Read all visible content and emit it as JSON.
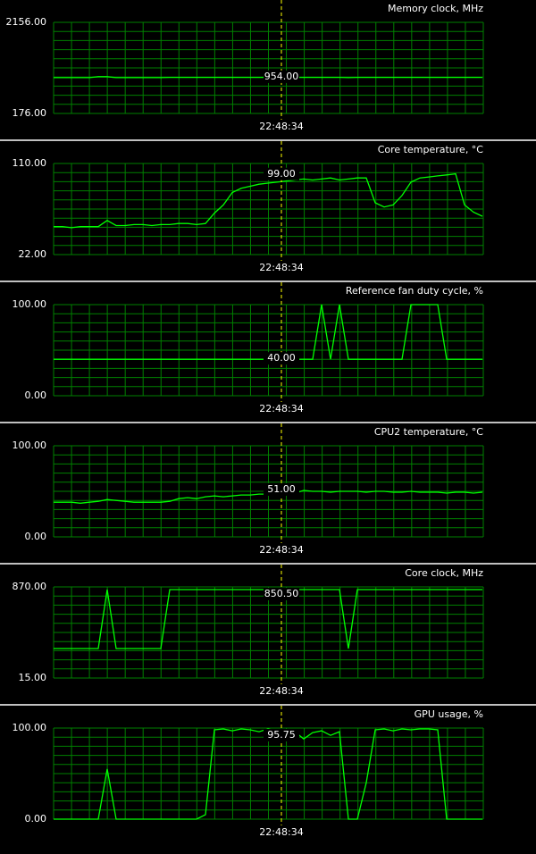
{
  "chart_data": [
    {
      "type": "line",
      "title": "Memory clock, MHz",
      "color": "#00ff00",
      "grid": true,
      "ylim": [
        176,
        2156
      ],
      "yticks": [
        {
          "value": 176,
          "label": "176.00"
        },
        {
          "value": 2156,
          "label": "2156.00"
        }
      ],
      "cursor": {
        "time": "22:48:34",
        "value": 954,
        "label": "954.00"
      },
      "values": [
        954,
        954,
        954,
        954,
        954,
        975,
        975,
        954,
        954,
        954,
        954,
        954,
        954,
        960,
        960,
        960,
        960,
        960,
        960,
        960,
        960,
        960,
        960,
        960,
        960,
        960,
        960,
        960,
        960,
        960,
        960,
        960,
        960,
        954,
        960,
        960,
        960,
        960,
        960,
        960,
        960,
        960,
        960,
        960,
        960,
        960,
        960,
        960,
        960
      ]
    },
    {
      "type": "line",
      "title": "Core temperature, °C",
      "color": "#00ff00",
      "grid": true,
      "ylim": [
        22,
        110
      ],
      "yticks": [
        {
          "value": 22,
          "label": "22.00"
        },
        {
          "value": 110,
          "label": "110.00"
        }
      ],
      "cursor": {
        "time": "22:48:34",
        "value": 99,
        "label": "99.00"
      },
      "values": [
        49,
        49,
        48,
        49,
        49,
        49,
        55,
        50,
        50,
        51,
        51,
        50,
        51,
        51,
        52,
        52,
        51,
        52,
        62,
        70,
        82,
        86,
        88,
        90,
        91,
        92,
        93,
        94,
        95,
        94,
        95,
        96,
        94,
        95,
        96,
        96,
        72,
        68,
        70,
        79,
        92,
        96,
        97,
        98,
        99,
        100,
        70,
        63,
        59
      ]
    },
    {
      "type": "line",
      "title": "Reference fan duty cycle, %",
      "color": "#00ff00",
      "grid": true,
      "ylim": [
        0,
        100
      ],
      "yticks": [
        {
          "value": 0,
          "label": "0.00"
        },
        {
          "value": 100,
          "label": "100.00"
        }
      ],
      "cursor": {
        "time": "22:48:34",
        "value": 40,
        "label": "40.00"
      },
      "values": [
        40,
        40,
        40,
        40,
        40,
        40,
        40,
        40,
        40,
        40,
        40,
        40,
        40,
        40,
        40,
        40,
        40,
        40,
        40,
        40,
        40,
        40,
        40,
        40,
        40,
        40,
        40,
        40,
        40,
        40,
        100,
        40,
        100,
        40,
        40,
        40,
        40,
        40,
        40,
        40,
        100,
        100,
        100,
        100,
        40,
        40,
        40,
        40,
        40
      ]
    },
    {
      "type": "line",
      "title": "CPU2 temperature, °C",
      "color": "#00ff00",
      "grid": true,
      "ylim": [
        0,
        100
      ],
      "yticks": [
        {
          "value": 0,
          "label": "0.00"
        },
        {
          "value": 100,
          "label": "100.00"
        }
      ],
      "cursor": {
        "time": "22:48:34",
        "value": 51,
        "label": "51.00"
      },
      "values": [
        38,
        38,
        38,
        37,
        38,
        39,
        41,
        40,
        39,
        38,
        38,
        38,
        38,
        39,
        42,
        43,
        42,
        44,
        45,
        44,
        45,
        46,
        46,
        47,
        47,
        48,
        48,
        48,
        51,
        50,
        50,
        49,
        50,
        50,
        50,
        49,
        50,
        50,
        49,
        49,
        50,
        49,
        49,
        49,
        48,
        49,
        49,
        48,
        49
      ]
    },
    {
      "type": "line",
      "title": "Core clock, MHz",
      "color": "#00ff00",
      "grid": true,
      "ylim": [
        15,
        870
      ],
      "yticks": [
        {
          "value": 15,
          "label": "15.00"
        },
        {
          "value": 870,
          "label": "870.00"
        }
      ],
      "cursor": {
        "time": "22:48:34",
        "value": 850.5,
        "label": "850.50"
      },
      "values": [
        292,
        292,
        292,
        292,
        292,
        292,
        845,
        292,
        292,
        292,
        292,
        292,
        292,
        845,
        845,
        845,
        845,
        845,
        845,
        845,
        845,
        845,
        845,
        845,
        845,
        845,
        845,
        845,
        845,
        845,
        845,
        845,
        845,
        292,
        845,
        845,
        845,
        845,
        845,
        845,
        845,
        845,
        845,
        845,
        845,
        845,
        845,
        845,
        845
      ]
    },
    {
      "type": "line",
      "title": "GPU usage, %",
      "color": "#00ff00",
      "grid": true,
      "ylim": [
        0,
        100
      ],
      "yticks": [
        {
          "value": 0,
          "label": "0.00"
        },
        {
          "value": 100,
          "label": "100.00"
        }
      ],
      "cursor": {
        "time": "22:48:34",
        "value": 95.75,
        "label": "95.75"
      },
      "values": [
        0,
        0,
        0,
        0,
        0,
        0,
        55,
        0,
        0,
        0,
        0,
        0,
        0,
        0,
        0,
        0,
        0,
        5,
        98,
        99,
        97,
        99,
        98,
        96,
        99,
        97,
        90,
        96,
        88,
        95,
        97,
        92,
        96,
        0,
        0,
        40,
        98,
        99,
        97,
        99,
        98,
        99,
        99,
        98,
        0,
        0,
        0,
        0,
        0
      ]
    }
  ]
}
